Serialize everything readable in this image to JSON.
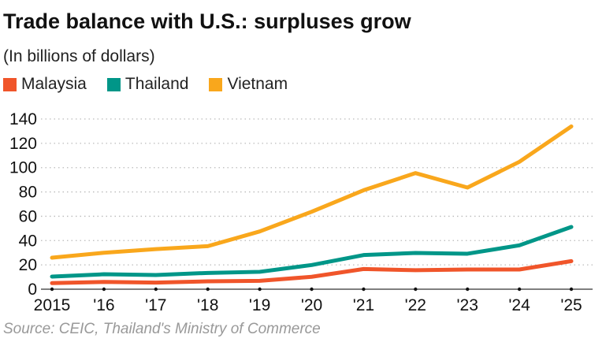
{
  "chart_data": {
    "type": "line",
    "title": "Trade balance with U.S.: surpluses grow",
    "subtitle": "(In billions of dollars)",
    "source": "Source: CEIC, Thailand's Ministry of Commerce",
    "xlabel": "",
    "ylabel": "",
    "x": [
      "2015",
      "'16",
      "'17",
      "'18",
      "'19",
      "'20",
      "'21",
      "'22",
      "'23",
      "'24",
      "'25"
    ],
    "ylim": [
      0,
      140
    ],
    "yticks": [
      0,
      20,
      40,
      60,
      80,
      100,
      120,
      140
    ],
    "grid": true,
    "legend_position": "top-left",
    "series": [
      {
        "name": "Malaysia",
        "color": "#f0552a",
        "values": [
          5.0,
          6.0,
          5.4,
          6.5,
          6.9,
          10.2,
          16.6,
          15.6,
          16.2,
          16.2,
          23.1
        ]
      },
      {
        "name": "Thailand",
        "color": "#009688",
        "values": [
          10.4,
          12.3,
          11.7,
          13.4,
          14.3,
          19.9,
          28.1,
          29.8,
          29.2,
          36.1,
          51.2
        ]
      },
      {
        "name": "Vietnam",
        "color": "#f9a71c",
        "values": [
          25.9,
          30.0,
          33.0,
          35.4,
          47.5,
          63.7,
          81.4,
          95.5,
          83.6,
          104.8,
          133.9
        ]
      }
    ]
  }
}
